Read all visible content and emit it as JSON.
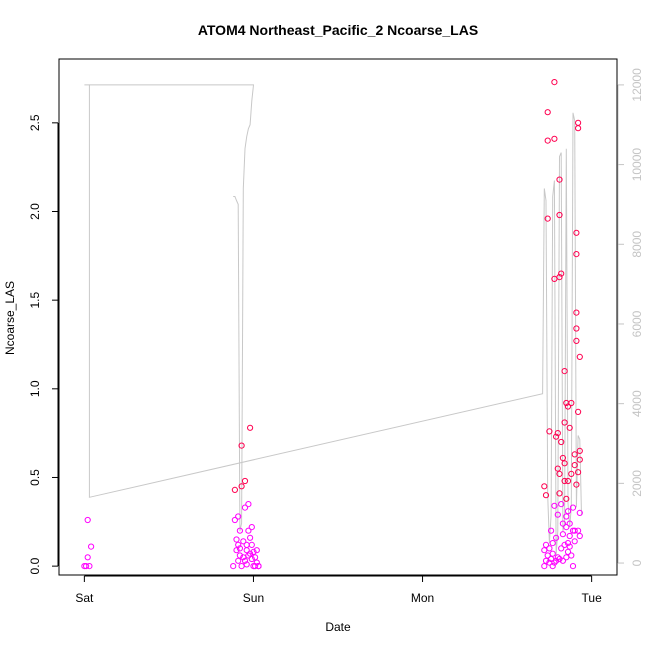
{
  "chart_data": {
    "type": "scatter",
    "title": "ATOM4 Northeast_Pacific_2 Ncoarse_LAS",
    "xlabel": "Date",
    "ylabel": "Ncoarse_LAS",
    "x_ticks": [
      "Sat",
      "Sun",
      "Mon",
      "Tue"
    ],
    "x_range_days": [
      -0.15,
      3.15
    ],
    "y_ticks": [
      0.0,
      0.5,
      1.0,
      1.5,
      2.0,
      2.5
    ],
    "y_tick_labels": [
      "0.0",
      "0.5",
      "1.0",
      "1.5",
      "2.0",
      "2.5"
    ],
    "ylim": [
      -0.05,
      2.86
    ],
    "y2_ticks": [
      0,
      2000,
      4000,
      6000,
      8000,
      10000,
      12000
    ],
    "y2lim": [
      -300,
      12650
    ],
    "grid": false,
    "colors": {
      "points_low": "#ff00ff",
      "points_high": "#ff0050",
      "line": "#c8c8c8",
      "right_axis": "#c4c4c4"
    },
    "series": [
      {
        "type": "scatter",
        "axis": "left",
        "points": [
          [
            0.0,
            0.0
          ],
          [
            0.01,
            0.0
          ],
          [
            0.02,
            0.05
          ],
          [
            0.02,
            0.26
          ],
          [
            0.03,
            0.0
          ],
          [
            0.04,
            0.11
          ],
          [
            0.88,
            0.0
          ],
          [
            0.89,
            0.26
          ],
          [
            0.89,
            0.43
          ],
          [
            0.9,
            0.09
          ],
          [
            0.9,
            0.15
          ],
          [
            0.91,
            0.12
          ],
          [
            0.91,
            0.03
          ],
          [
            0.91,
            0.28
          ],
          [
            0.92,
            0.06
          ],
          [
            0.92,
            0.1
          ],
          [
            0.92,
            0.2
          ],
          [
            0.93,
            0.0
          ],
          [
            0.93,
            0.68
          ],
          [
            0.93,
            0.45
          ],
          [
            0.94,
            0.05
          ],
          [
            0.94,
            0.14
          ],
          [
            0.95,
            0.03
          ],
          [
            0.95,
            0.48
          ],
          [
            0.95,
            0.33
          ],
          [
            0.96,
            0.09
          ],
          [
            0.96,
            0.12
          ],
          [
            0.96,
            0.01
          ],
          [
            0.97,
            0.06
          ],
          [
            0.97,
            0.2
          ],
          [
            0.97,
            0.35
          ],
          [
            0.98,
            0.78
          ],
          [
            0.98,
            0.16
          ],
          [
            0.98,
            0.07
          ],
          [
            0.99,
            0.12
          ],
          [
            0.99,
            0.22
          ],
          [
            0.99,
            0.04
          ],
          [
            1.0,
            0.0
          ],
          [
            1.0,
            0.08
          ],
          [
            1.01,
            0.05
          ],
          [
            1.01,
            0.0
          ],
          [
            1.02,
            0.02
          ],
          [
            1.02,
            0.09
          ],
          [
            1.03,
            0.0
          ],
          [
            1.03,
            0.0
          ],
          [
            2.72,
            0.0
          ],
          [
            2.72,
            0.09
          ],
          [
            2.72,
            0.45
          ],
          [
            2.73,
            0.03
          ],
          [
            2.73,
            0.12
          ],
          [
            2.73,
            0.4
          ],
          [
            2.74,
            0.06
          ],
          [
            2.74,
            1.96
          ],
          [
            2.74,
            2.4
          ],
          [
            2.74,
            2.56
          ],
          [
            2.75,
            0.76
          ],
          [
            2.75,
            0.02
          ],
          [
            2.75,
            0.1
          ],
          [
            2.76,
            0.2
          ],
          [
            2.76,
            0.04
          ],
          [
            2.77,
            0.0
          ],
          [
            2.77,
            0.07
          ],
          [
            2.77,
            0.13
          ],
          [
            2.78,
            0.02
          ],
          [
            2.78,
            0.34
          ],
          [
            2.78,
            1.62
          ],
          [
            2.78,
            2.41
          ],
          [
            2.78,
            2.73
          ],
          [
            2.79,
            0.03
          ],
          [
            2.79,
            0.73
          ],
          [
            2.79,
            0.16
          ],
          [
            2.8,
            0.05
          ],
          [
            2.8,
            0.75
          ],
          [
            2.8,
            0.55
          ],
          [
            2.8,
            0.29
          ],
          [
            2.81,
            0.04
          ],
          [
            2.81,
            0.52
          ],
          [
            2.81,
            0.41
          ],
          [
            2.81,
            1.63
          ],
          [
            2.81,
            1.98
          ],
          [
            2.81,
            2.18
          ],
          [
            2.82,
            0.7
          ],
          [
            2.82,
            0.35
          ],
          [
            2.82,
            1.65
          ],
          [
            2.82,
            0.1
          ],
          [
            2.83,
            0.61
          ],
          [
            2.83,
            0.24
          ],
          [
            2.83,
            0.18
          ],
          [
            2.83,
            0.03
          ],
          [
            2.84,
            0.58
          ],
          [
            2.84,
            0.48
          ],
          [
            2.84,
            0.81
          ],
          [
            2.84,
            1.1
          ],
          [
            2.84,
            0.12
          ],
          [
            2.85,
            0.92
          ],
          [
            2.85,
            0.38
          ],
          [
            2.85,
            0.22
          ],
          [
            2.85,
            0.28
          ],
          [
            2.85,
            0.05
          ],
          [
            2.86,
            0.9
          ],
          [
            2.86,
            0.48
          ],
          [
            2.86,
            0.31
          ],
          [
            2.86,
            0.13
          ],
          [
            2.86,
            0.08
          ],
          [
            2.87,
            0.78
          ],
          [
            2.87,
            0.24
          ],
          [
            2.87,
            0.17
          ],
          [
            2.87,
            0.11
          ],
          [
            2.88,
            0.92
          ],
          [
            2.88,
            0.52
          ],
          [
            2.88,
            0.06
          ],
          [
            2.89,
            0.2
          ],
          [
            2.89,
            0.0
          ],
          [
            2.89,
            0.33
          ],
          [
            2.9,
            0.2
          ],
          [
            2.9,
            0.63
          ],
          [
            2.9,
            0.57
          ],
          [
            2.9,
            0.14
          ],
          [
            2.91,
            0.46
          ],
          [
            2.91,
            1.43
          ],
          [
            2.91,
            1.76
          ],
          [
            2.91,
            1.88
          ],
          [
            2.91,
            1.27
          ],
          [
            2.91,
            1.34
          ],
          [
            2.92,
            0.87
          ],
          [
            2.92,
            0.53
          ],
          [
            2.92,
            0.2
          ],
          [
            2.92,
            2.47
          ],
          [
            2.92,
            2.5
          ],
          [
            2.93,
            0.65
          ],
          [
            2.93,
            0.3
          ],
          [
            2.93,
            0.17
          ],
          [
            2.93,
            1.18
          ],
          [
            2.93,
            0.6
          ]
        ]
      },
      {
        "type": "line",
        "axis": "right",
        "points": [
          [
            0.0,
            12000
          ],
          [
            0.03,
            12000
          ],
          [
            0.03,
            1650
          ],
          [
            2.71,
            4250
          ],
          [
            2.72,
            9400
          ],
          [
            2.73,
            9100
          ],
          [
            2.74,
            1700
          ],
          [
            2.75,
            500
          ],
          [
            2.76,
            1200
          ],
          [
            2.77,
            9200
          ],
          [
            2.78,
            9600
          ],
          [
            2.79,
            200
          ],
          [
            2.8,
            800
          ],
          [
            2.81,
            10200
          ],
          [
            2.82,
            10300
          ],
          [
            2.83,
            800
          ],
          [
            2.84,
            1000
          ],
          [
            2.85,
            10400
          ],
          [
            2.86,
            1500
          ],
          [
            2.87,
            900
          ],
          [
            2.88,
            1400
          ],
          [
            2.89,
            11300
          ],
          [
            2.9,
            11100
          ],
          [
            2.91,
            1400
          ],
          [
            2.92,
            3200
          ],
          [
            2.93,
            3100
          ],
          [
            2.94,
            1200
          ]
        ]
      },
      {
        "type": "line",
        "axis": "right",
        "points": [
          [
            0.03,
            12000
          ],
          [
            1.0,
            12000
          ],
          [
            0.99,
            11600
          ],
          [
            0.98,
            11000
          ],
          [
            0.97,
            10900
          ],
          [
            0.96,
            10700
          ],
          [
            0.95,
            10400
          ],
          [
            0.94,
            9400
          ],
          [
            0.93,
            1000
          ],
          [
            0.92,
            800
          ],
          [
            0.91,
            9000
          ],
          [
            0.9,
            9100
          ],
          [
            0.89,
            9200
          ],
          [
            0.88,
            9200
          ]
        ]
      }
    ]
  }
}
